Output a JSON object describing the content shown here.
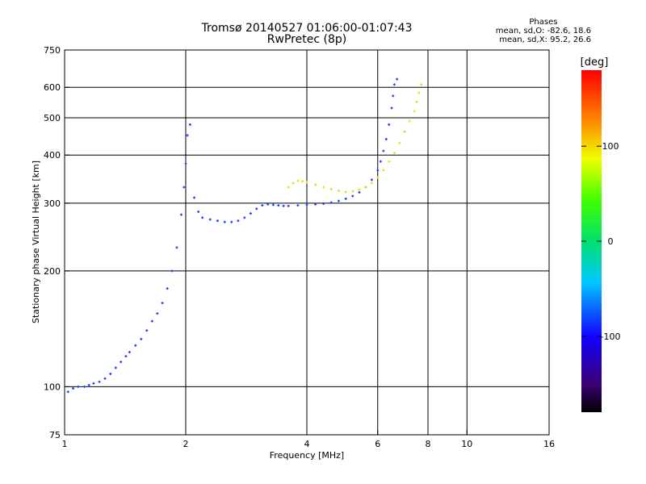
{
  "chart_data": {
    "type": "scatter",
    "title": "Tromsø 20140527 01:06:00-01:07:43",
    "subtitle": "RwPretec (8p)",
    "xlabel": "Frequency [MHz]",
    "ylabel": "Stationary phase Virtual Height [km]",
    "xscale": "log",
    "yscale": "log",
    "xlim": [
      1,
      16
    ],
    "ylim": [
      75,
      750
    ],
    "x_ticks": [
      1,
      2,
      4,
      6,
      8,
      10,
      16
    ],
    "y_ticks": [
      75,
      100,
      200,
      300,
      400,
      500,
      600,
      750
    ],
    "x_grid": [
      2,
      4,
      6,
      8,
      10
    ],
    "y_grid": [
      100,
      200,
      300,
      400,
      500,
      600
    ],
    "colorbar": {
      "label": "[deg]",
      "range": [
        -180,
        180
      ],
      "ticks": [
        100,
        0,
        -100
      ]
    },
    "stats": {
      "header": "Phases",
      "line1": "mean, sd,O:  -82.6, 18.6",
      "line2": "mean, sd,X:  95.2, 26.6"
    },
    "series": [
      {
        "mode": "O",
        "x": [
          1.02,
          1.05,
          1.08,
          1.12,
          1.15,
          1.18,
          1.22,
          1.26,
          1.3,
          1.34,
          1.38,
          1.42,
          1.45,
          1.5,
          1.55,
          1.6,
          1.65,
          1.7,
          1.75,
          1.8,
          1.85,
          1.9,
          1.95,
          1.98,
          2.0,
          2.02,
          2.05,
          2.1,
          2.15,
          2.2,
          2.3,
          2.4,
          2.5,
          2.6,
          2.7,
          2.8,
          2.9,
          3.0,
          3.1,
          3.2,
          3.3,
          3.4,
          3.5,
          3.6,
          3.8,
          4.0,
          4.2,
          4.4,
          4.6,
          4.8,
          5.0,
          5.2,
          5.4,
          5.6,
          5.8,
          6.0,
          6.1,
          6.2,
          6.3,
          6.4,
          6.5,
          6.55,
          6.6,
          6.7
        ],
        "y": [
          97,
          99,
          100,
          100,
          101,
          102,
          103,
          105,
          108,
          112,
          116,
          120,
          123,
          128,
          133,
          140,
          148,
          155,
          165,
          180,
          200,
          230,
          280,
          330,
          380,
          450,
          480,
          310,
          285,
          275,
          272,
          270,
          268,
          268,
          270,
          275,
          282,
          290,
          296,
          298,
          297,
          296,
          295,
          295,
          296,
          297,
          298,
          299,
          301,
          304,
          308,
          313,
          320,
          330,
          345,
          365,
          385,
          410,
          440,
          480,
          530,
          570,
          610,
          630
        ],
        "color": "#1a3cff"
      },
      {
        "mode": "X",
        "x": [
          3.6,
          3.7,
          3.8,
          3.9,
          4.0,
          4.2,
          4.4,
          4.6,
          4.8,
          5.0,
          5.2,
          5.4,
          5.6,
          5.8,
          6.0,
          6.2,
          6.4,
          6.6,
          6.8,
          7.0,
          7.2,
          7.4,
          7.5,
          7.6,
          7.7
        ],
        "y": [
          330,
          338,
          343,
          342,
          340,
          335,
          330,
          326,
          323,
          321,
          322,
          325,
          330,
          338,
          350,
          365,
          385,
          405,
          430,
          460,
          490,
          520,
          550,
          580,
          610
        ],
        "color": "#e8e000"
      }
    ]
  }
}
